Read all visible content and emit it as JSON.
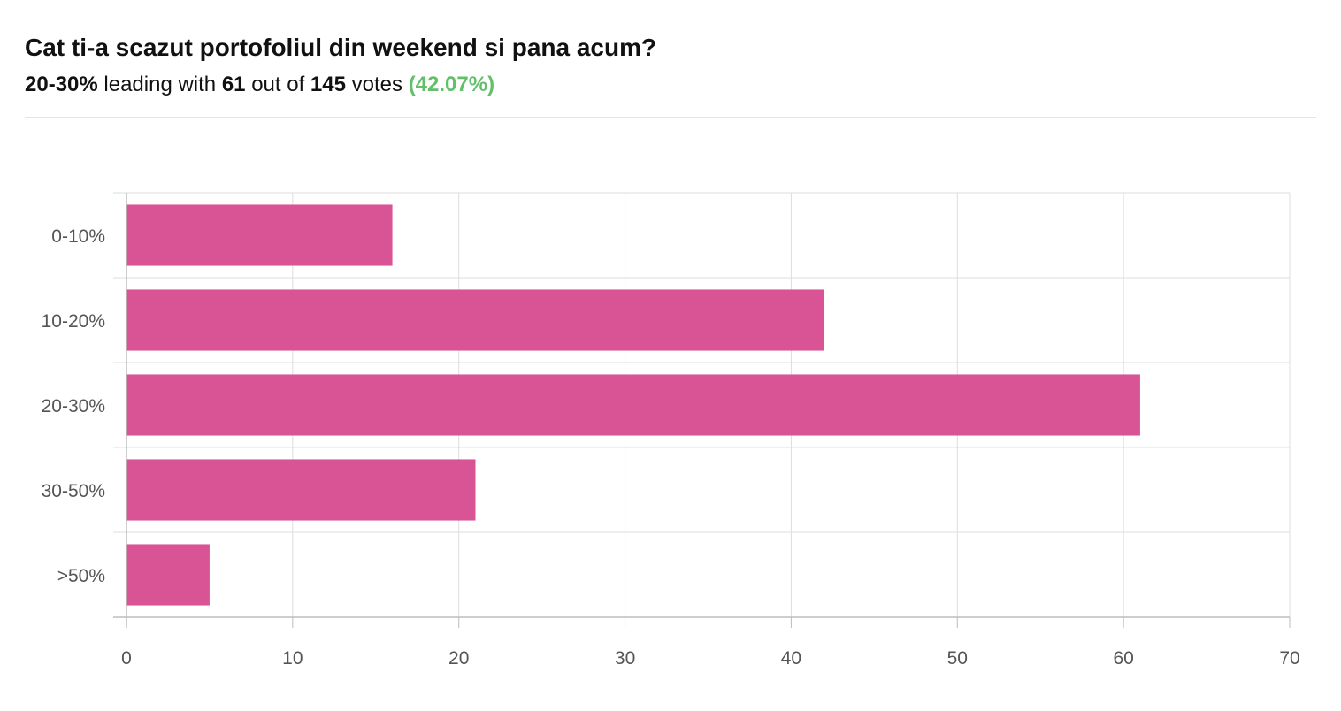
{
  "header": {
    "question": "Cat ti-a scazut portofoliul din weekend si pana acum?",
    "leader": "20-30%",
    "leading_with": "leading with",
    "votes_leader": "61",
    "out_of": "out of",
    "votes_total": "145",
    "votes_word": "votes",
    "percent": "(42.07%)"
  },
  "colors": {
    "bar": "#d95495",
    "accent_green": "#63c06a",
    "grid": "#dddddd",
    "axis": "#bdbdbd"
  },
  "chart_data": {
    "type": "bar",
    "orientation": "horizontal",
    "categories": [
      "0-10%",
      "10-20%",
      "20-30%",
      "30-50%",
      ">50%"
    ],
    "values": [
      16,
      42,
      61,
      21,
      5
    ],
    "xlim": [
      0,
      70
    ],
    "xticks": [
      0,
      10,
      20,
      30,
      40,
      50,
      60,
      70
    ],
    "grid": true,
    "legend": "none"
  }
}
